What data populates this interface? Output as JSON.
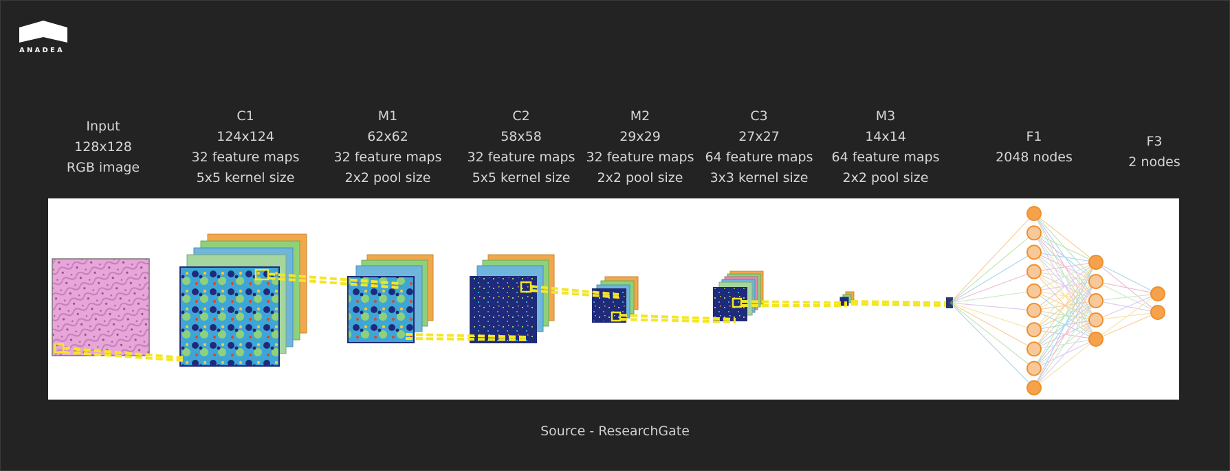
{
  "logo": {
    "text": "ANADEA"
  },
  "layers": [
    {
      "id": "input",
      "lines": [
        "Input",
        "128x128",
        "RGB image"
      ]
    },
    {
      "id": "c1",
      "lines": [
        "C1",
        "124x124",
        "32 feature maps",
        "5x5 kernel size"
      ]
    },
    {
      "id": "m1",
      "lines": [
        "M1",
        "62x62",
        "32 feature maps",
        "2x2 pool size"
      ]
    },
    {
      "id": "c2",
      "lines": [
        "C2",
        "58x58",
        "32 feature maps",
        "5x5 kernel size"
      ]
    },
    {
      "id": "m2",
      "lines": [
        "M2",
        "29x29",
        "32 feature maps",
        "2x2 pool size"
      ]
    },
    {
      "id": "c3",
      "lines": [
        "C3",
        "27x27",
        "64 feature maps",
        "3x3 kernel size"
      ]
    },
    {
      "id": "m3",
      "lines": [
        "M3",
        "14x14",
        "64 feature maps",
        "2x2 pool size"
      ]
    },
    {
      "id": "f1",
      "lines": [
        "F1",
        "2048 nodes"
      ]
    },
    {
      "id": "f3",
      "lines": [
        "F3",
        "2 nodes"
      ]
    }
  ],
  "caption": "Source - ResearchGate",
  "colors": {
    "background": "#232323",
    "text": "#d6d6d6",
    "highlight": "#f5e625",
    "node_fill": "#f7c99a",
    "node_stroke": "#ef8f2c",
    "feature_map_bg": "#1f2a7a"
  }
}
